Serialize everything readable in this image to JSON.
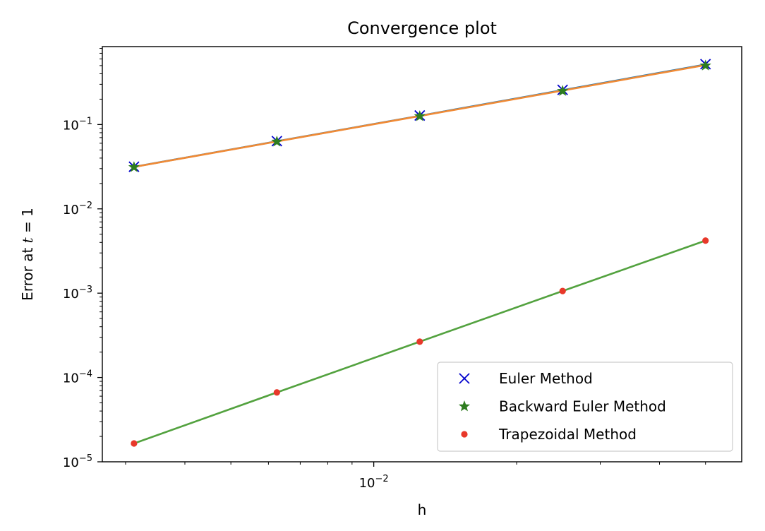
{
  "chart_data": {
    "type": "line",
    "title": "Convergence plot",
    "xlabel": "h",
    "ylabel_prefix": "Error at ",
    "ylabel_var": "t",
    "ylabel_suffix": " = 1",
    "xscale": "log",
    "yscale": "log",
    "xlim": [
      0.00268,
      0.0596
    ],
    "ylim": [
      1e-05,
      0.84
    ],
    "x_ticks": [
      {
        "value": 0.01,
        "base": "10",
        "exp": "−2"
      }
    ],
    "y_ticks": [
      {
        "value": 1e-05,
        "base": "10",
        "exp": "−5"
      },
      {
        "value": 0.0001,
        "base": "10",
        "exp": "−4"
      },
      {
        "value": 0.001,
        "base": "10",
        "exp": "−3"
      },
      {
        "value": 0.01,
        "base": "10",
        "exp": "−2"
      },
      {
        "value": 0.1,
        "base": "10",
        "exp": "−1"
      }
    ],
    "grid": false,
    "legend_position": "lower-right",
    "h": [
      0.003125,
      0.00625,
      0.0125,
      0.025,
      0.05
    ],
    "series": [
      {
        "name": "Euler Method",
        "marker": "x",
        "color": "#0000cc",
        "values": [
          0.0316,
          0.0635,
          0.128,
          0.258,
          0.52
        ],
        "line_color": "#1f77b4"
      },
      {
        "name": "Backward Euler Method",
        "marker": "star",
        "color": "#2e7d1f",
        "values": [
          0.0312,
          0.0627,
          0.1255,
          0.25,
          0.5
        ],
        "line_color": "#ff7f0e"
      },
      {
        "name": "Trapezoidal Method",
        "marker": "dot",
        "color": "#e8382a",
        "values": [
          1.65e-05,
          6.65e-05,
          0.000266,
          0.00106,
          0.0042
        ],
        "line_color": "#4c9f3a"
      }
    ],
    "fit_lines": [
      {
        "color": "#1f77b4",
        "values": [
          0.0315,
          0.0633,
          0.127,
          0.256,
          0.515
        ]
      },
      {
        "color": "#f08a35",
        "values": [
          0.0314,
          0.063,
          0.1262,
          0.253,
          0.508
        ]
      },
      {
        "color": "#53a23f",
        "values": [
          1.65e-05,
          6.65e-05,
          0.000266,
          0.00106,
          0.0042
        ]
      }
    ]
  }
}
